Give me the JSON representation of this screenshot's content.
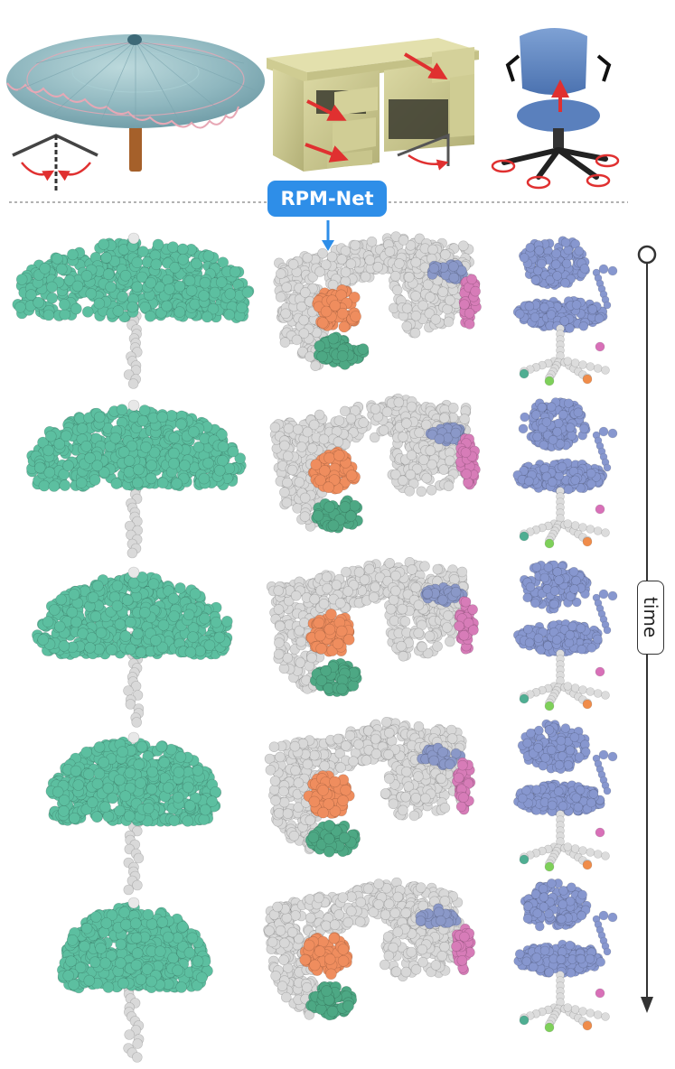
{
  "method_label": "RPM-Net",
  "time_label": "time",
  "columns": [
    {
      "name": "umbrella"
    },
    {
      "name": "desk"
    },
    {
      "name": "office-chair"
    }
  ],
  "frame_count": 5,
  "colors": {
    "umbrella_canopy": "#5cbfa0",
    "umbrella_stick": "#d9d9d9",
    "desk_body": "#d8d8d8",
    "drawer_orange": "#ef8d5e",
    "drawer_green": "#4da884",
    "panel_blue": "#8a98c8",
    "door_pink": "#d77cb8",
    "chair_seat": "#8797cf",
    "chair_base": "#dcdcdc",
    "wheel_pink": "#d870b8",
    "wheel_orange": "#f08c4a",
    "wheel_green": "#7ed05a",
    "wheel_teal": "#4fae92",
    "motion_arrow": "#e03030",
    "accent": "#2e8ee8",
    "top_umbrella": "#8fb7bf",
    "top_desk": "#c9c68c",
    "top_chair": "#5d86c3"
  }
}
